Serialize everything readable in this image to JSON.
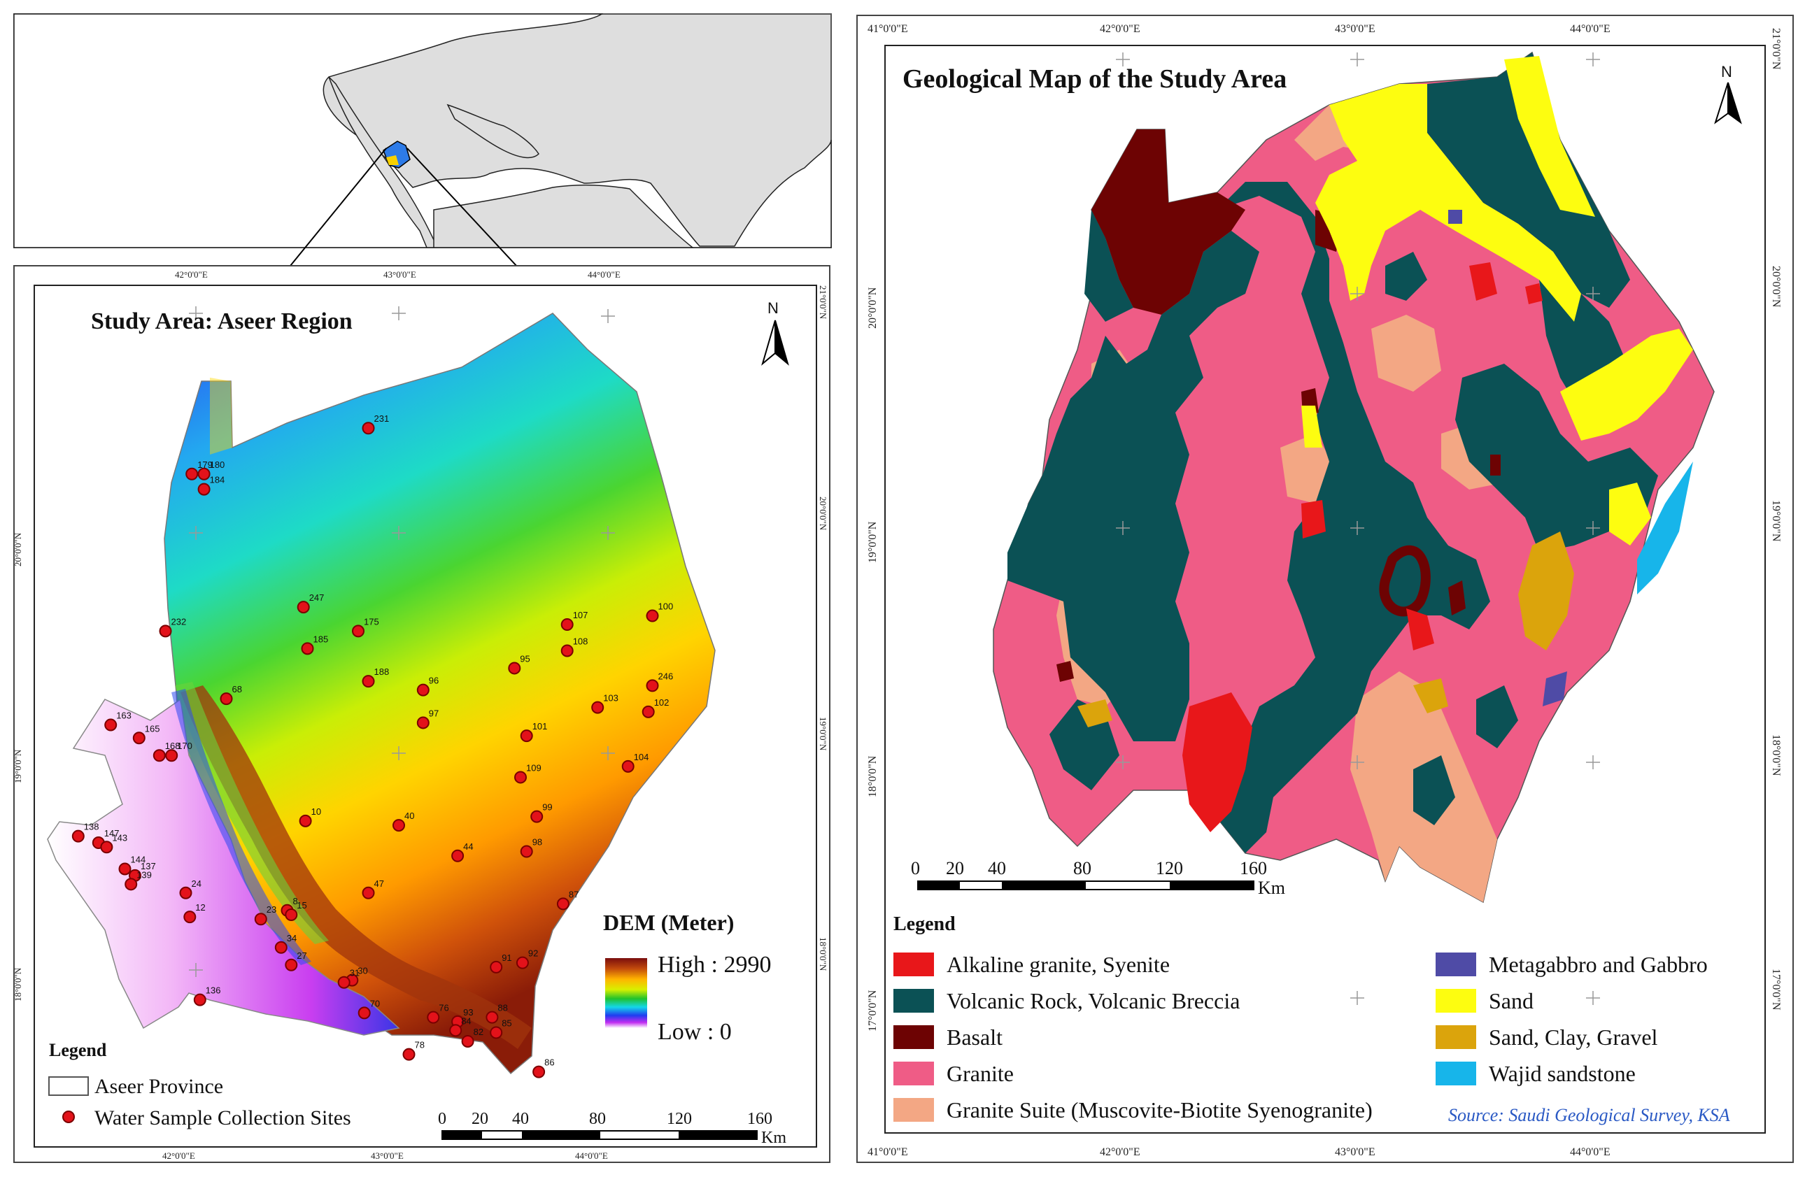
{
  "locator": {
    "description_hidden": ""
  },
  "left_map": {
    "title": "Study Area: Aseer Region",
    "north_label": "N",
    "top_ticks": [
      "42°0'0\"E",
      "43°0'0\"E",
      "44°0'0\"E"
    ],
    "bottom_ticks": [
      "42°0'0\"E",
      "43°0'0\"E",
      "44°0'0\"E"
    ],
    "left_ticks": [
      "20°0'0\"N",
      "19°0'0\"N",
      "18°0'0\"N"
    ],
    "right_ticks": [
      "21°0'0\"N",
      "20°0'0\"N",
      "19°0'0\"N",
      "18°0'0\"N"
    ],
    "dem_title": "DEM (Meter)",
    "dem_high": "High : 2990",
    "dem_low": "Low : 0",
    "legend_title": "Legend",
    "legend_province": "Aseer Province",
    "legend_sites": "Water Sample Collection Sites",
    "scale_labels": [
      "0",
      "20",
      "40",
      "80",
      "120",
      "160"
    ],
    "scale_unit": "Km",
    "sample_sites": [
      {
        "id": "231",
        "lon": 42.85,
        "lat": 20.48
      },
      {
        "id": "179",
        "lon": 41.98,
        "lat": 20.27
      },
      {
        "id": "180",
        "lon": 42.04,
        "lat": 20.27
      },
      {
        "id": "184",
        "lon": 42.04,
        "lat": 20.2
      },
      {
        "id": "247",
        "lon": 42.53,
        "lat": 19.66
      },
      {
        "id": "232",
        "lon": 41.85,
        "lat": 19.55
      },
      {
        "id": "185",
        "lon": 42.55,
        "lat": 19.47
      },
      {
        "id": "175",
        "lon": 42.8,
        "lat": 19.55
      },
      {
        "id": "107",
        "lon": 43.83,
        "lat": 19.58
      },
      {
        "id": "100",
        "lon": 44.25,
        "lat": 19.62
      },
      {
        "id": "108",
        "lon": 43.83,
        "lat": 19.46
      },
      {
        "id": "188",
        "lon": 42.85,
        "lat": 19.32
      },
      {
        "id": "95",
        "lon": 43.57,
        "lat": 19.38
      },
      {
        "id": "96",
        "lon": 43.12,
        "lat": 19.28
      },
      {
        "id": "246",
        "lon": 44.25,
        "lat": 19.3
      },
      {
        "id": "68",
        "lon": 42.15,
        "lat": 19.24
      },
      {
        "id": "103",
        "lon": 43.98,
        "lat": 19.2
      },
      {
        "id": "102",
        "lon": 44.23,
        "lat": 19.18
      },
      {
        "id": "97",
        "lon": 43.12,
        "lat": 19.13
      },
      {
        "id": "101",
        "lon": 43.63,
        "lat": 19.07
      },
      {
        "id": "163",
        "lon": 41.58,
        "lat": 19.12
      },
      {
        "id": "165",
        "lon": 41.72,
        "lat": 19.06
      },
      {
        "id": "168",
        "lon": 41.82,
        "lat": 18.98
      },
      {
        "id": "170",
        "lon": 41.88,
        "lat": 18.98
      },
      {
        "id": "104",
        "lon": 44.13,
        "lat": 18.93
      },
      {
        "id": "109",
        "lon": 43.6,
        "lat": 18.88
      },
      {
        "id": "10",
        "lon": 42.54,
        "lat": 18.68
      },
      {
        "id": "99",
        "lon": 43.68,
        "lat": 18.7
      },
      {
        "id": "40",
        "lon": 43.0,
        "lat": 18.66
      },
      {
        "id": "138",
        "lon": 41.42,
        "lat": 18.61
      },
      {
        "id": "147",
        "lon": 41.52,
        "lat": 18.58
      },
      {
        "id": "143",
        "lon": 41.56,
        "lat": 18.56
      },
      {
        "id": "98",
        "lon": 43.63,
        "lat": 18.54
      },
      {
        "id": "44",
        "lon": 43.29,
        "lat": 18.52
      },
      {
        "id": "144",
        "lon": 41.65,
        "lat": 18.46
      },
      {
        "id": "137",
        "lon": 41.7,
        "lat": 18.43
      },
      {
        "id": "139",
        "lon": 41.68,
        "lat": 18.39
      },
      {
        "id": "24",
        "lon": 41.95,
        "lat": 18.35
      },
      {
        "id": "47",
        "lon": 42.85,
        "lat": 18.35
      },
      {
        "id": "87",
        "lon": 43.81,
        "lat": 18.3
      },
      {
        "id": "8",
        "lon": 42.45,
        "lat": 18.27
      },
      {
        "id": "15",
        "lon": 42.47,
        "lat": 18.25
      },
      {
        "id": "23",
        "lon": 42.32,
        "lat": 18.23
      },
      {
        "id": "12",
        "lon": 41.97,
        "lat": 18.24
      },
      {
        "id": "34",
        "lon": 42.42,
        "lat": 18.1
      },
      {
        "id": "91",
        "lon": 43.48,
        "lat": 18.01
      },
      {
        "id": "92",
        "lon": 43.61,
        "lat": 18.03
      },
      {
        "id": "27",
        "lon": 42.47,
        "lat": 18.02
      },
      {
        "id": "30",
        "lon": 42.77,
        "lat": 17.95
      },
      {
        "id": "136",
        "lon": 42.02,
        "lat": 17.86
      },
      {
        "id": "31",
        "lon": 42.73,
        "lat": 17.94
      },
      {
        "id": "70",
        "lon": 42.83,
        "lat": 17.8
      },
      {
        "id": "76",
        "lon": 43.17,
        "lat": 17.78
      },
      {
        "id": "88",
        "lon": 43.46,
        "lat": 17.78
      },
      {
        "id": "93",
        "lon": 43.29,
        "lat": 17.76
      },
      {
        "id": "84",
        "lon": 43.28,
        "lat": 17.72
      },
      {
        "id": "85",
        "lon": 43.48,
        "lat": 17.71
      },
      {
        "id": "82",
        "lon": 43.34,
        "lat": 17.67
      },
      {
        "id": "78",
        "lon": 43.05,
        "lat": 17.61
      },
      {
        "id": "86",
        "lon": 43.69,
        "lat": 17.53
      }
    ]
  },
  "right_map": {
    "title": "Geological Map of the Study Area",
    "north_label": "N",
    "top_ticks": [
      "41°0'0\"E",
      "42°0'0\"E",
      "43°0'0\"E",
      "44°0'0\"E"
    ],
    "bottom_ticks": [
      "41°0'0\"E",
      "42°0'0\"E",
      "43°0'0\"E",
      "44°0'0\"E"
    ],
    "left_ticks": [
      "20°0'0\"N",
      "19°0'0\"N",
      "18°0'0\"N",
      "17°0'0\"N"
    ],
    "right_ticks": [
      "21°0'0\"N",
      "20°0'0\"N",
      "19°0'0\"N",
      "18°0'0\"N",
      "17°0'0\"N"
    ],
    "scale_labels": [
      "0",
      "20",
      "40",
      "80",
      "120",
      "160"
    ],
    "scale_unit": "Km",
    "legend_title": "Legend",
    "legend_items": [
      {
        "label": "Alkaline granite, Syenite",
        "color": "#e8171a"
      },
      {
        "label": "Volcanic Rock, Volcanic Breccia",
        "color": "#0b5155"
      },
      {
        "label": "Basalt",
        "color": "#6d0303"
      },
      {
        "label": "Granite",
        "color": "#ef5c86"
      },
      {
        "label": "Granite Suite (Muscovite-Biotite Syenogranite)",
        "color": "#f3a784"
      },
      {
        "label": "Metagabbro and Gabbro",
        "color": "#4f4ba6"
      },
      {
        "label": "Sand",
        "color": "#fdfd10"
      },
      {
        "label": "Sand, Clay, Gravel",
        "color": "#dba40c"
      },
      {
        "label": "Wajid sandstone",
        "color": "#17b5ea"
      }
    ],
    "source": "Source: Saudi Geological Survey, KSA"
  }
}
